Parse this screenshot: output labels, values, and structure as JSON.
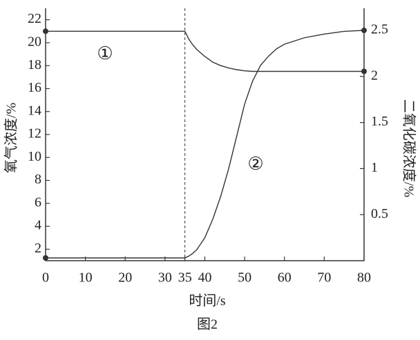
{
  "chart_data": {
    "type": "line",
    "title": "图2",
    "xlabel": "时间/s",
    "ylabel": "氧气浓度/%",
    "y2label": "二氧化碳浓度/%",
    "x": [
      0,
      35,
      36,
      37,
      38,
      40,
      42,
      44,
      46,
      48,
      50,
      52,
      54,
      56,
      58,
      60,
      65,
      70,
      75,
      80
    ],
    "series": [
      {
        "name": "①",
        "color": "#333333",
        "axis": "y",
        "values": [
          21,
          21,
          20.3,
          19.8,
          19.4,
          18.8,
          18.3,
          18.0,
          17.8,
          17.65,
          17.55,
          17.5,
          17.5,
          17.5,
          17.5,
          17.5,
          17.5,
          17.5,
          17.5,
          17.5
        ]
      },
      {
        "name": "②",
        "color": "#333333",
        "axis": "y2",
        "values": [
          0.03,
          0.03,
          0.05,
          0.08,
          0.12,
          0.25,
          0.45,
          0.7,
          1.0,
          1.35,
          1.7,
          1.95,
          2.12,
          2.22,
          2.3,
          2.35,
          2.42,
          2.46,
          2.49,
          2.5
        ]
      }
    ],
    "xlim": [
      0,
      80
    ],
    "xticks": [
      0,
      10,
      20,
      30,
      35,
      40,
      50,
      60,
      70,
      80
    ],
    "ylim": [
      1,
      23
    ],
    "yticks": [
      2,
      4,
      6,
      8,
      10,
      12,
      14,
      16,
      18,
      20,
      22
    ],
    "y2lim": [
      0,
      2.74
    ],
    "y2ticks": [
      0.5,
      1,
      1.5,
      2,
      2.5
    ]
  }
}
